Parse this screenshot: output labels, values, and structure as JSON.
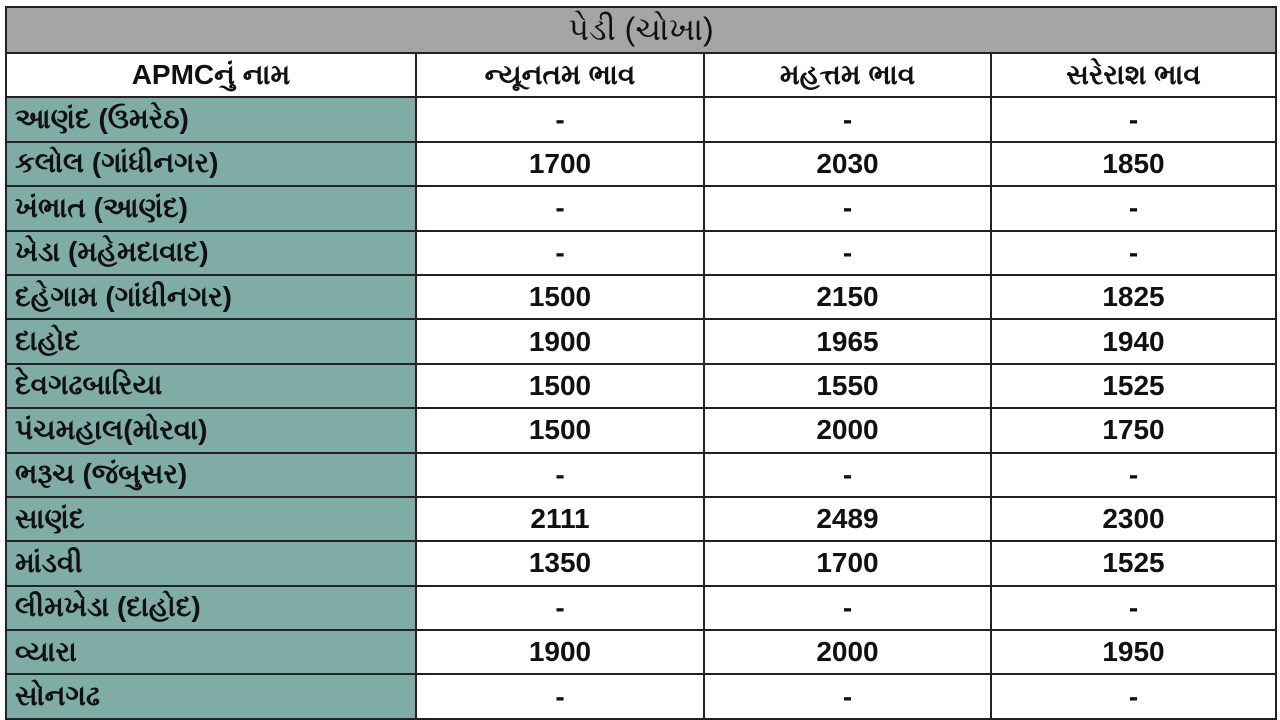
{
  "title": "પેડી (ચોખા)",
  "headers": [
    "APMCનું નામ",
    "ન્યૂનતમ ભાવ",
    "મહત્તમ ભાવ",
    "સરેરાશ ભાવ"
  ],
  "rows": [
    {
      "name": "આણંદ (ઉમરેઠ)",
      "min": "-",
      "max": "-",
      "avg": "-"
    },
    {
      "name": "કલોલ  (ગાંધીનગર)",
      "min": "1700",
      "max": "2030",
      "avg": "1850"
    },
    {
      "name": "ખંભાત (આણંદ)",
      "min": "-",
      "max": "-",
      "avg": "-"
    },
    {
      "name": "ખેડા (મહેમદાવાદ)",
      "min": "-",
      "max": "-",
      "avg": "-"
    },
    {
      "name": "દહેગામ (ગાંધીનગર)",
      "min": "1500",
      "max": "2150",
      "avg": "1825"
    },
    {
      "name": "દાહોદ",
      "min": "1900",
      "max": "1965",
      "avg": "1940"
    },
    {
      "name": "દેવગઢબારિયા",
      "min": "1500",
      "max": "1550",
      "avg": "1525"
    },
    {
      "name": "પંચમહાલ(મોરવા)",
      "min": "1500",
      "max": "2000",
      "avg": "1750"
    },
    {
      "name": "ભરૂચ (જંબુસર)",
      "min": "-",
      "max": "-",
      "avg": "-"
    },
    {
      "name": "સાણંદ",
      "min": "2111",
      "max": "2489",
      "avg": "2300"
    },
    {
      "name": "માંડવી",
      "min": "1350",
      "max": "1700",
      "avg": "1525"
    },
    {
      "name": "લીમખેડા (દાહોદ)",
      "min": "-",
      "max": "-",
      "avg": "-"
    },
    {
      "name": "વ્યારા",
      "min": "1900",
      "max": "2000",
      "avg": "1950"
    },
    {
      "name": "સોનગઢ",
      "min": "-",
      "max": "-",
      "avg": "-"
    }
  ],
  "colors": {
    "title_bg": "#a5a5a5",
    "name_bg": "#7fada6"
  }
}
